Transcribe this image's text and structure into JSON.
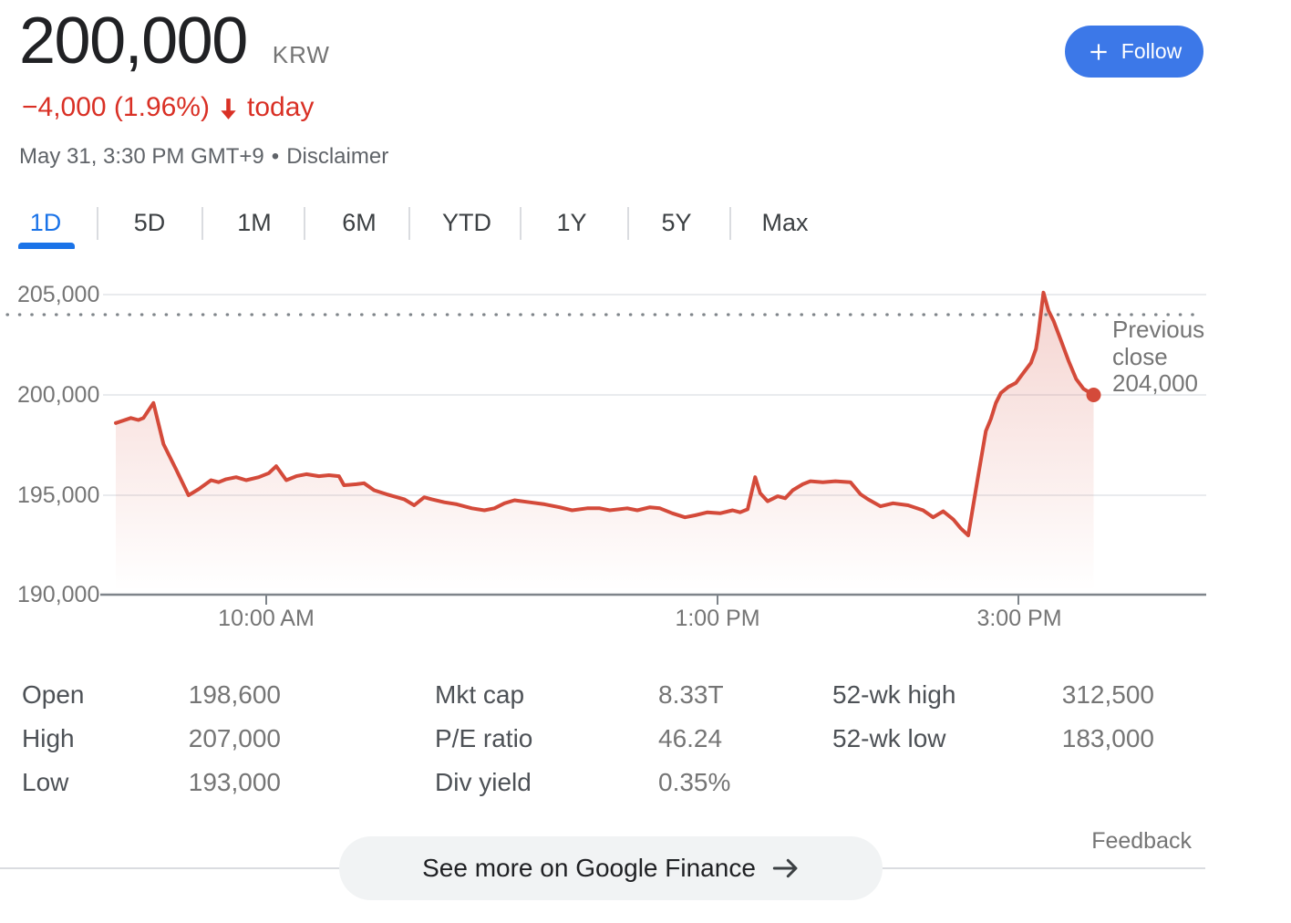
{
  "header": {
    "price": "200,000",
    "currency": "KRW",
    "change_text": "−4,000 (1.96%)",
    "change_suffix": "today",
    "trend": "down",
    "timestamp": "May 31, 3:30 PM GMT+9",
    "bullet": "•",
    "disclaimer": "Disclaimer",
    "follow_label": "Follow",
    "colors": {
      "change_red": "#d93025",
      "follow_blue": "#3c78e8",
      "active_tab_blue": "#1a73e8"
    }
  },
  "tabs": [
    {
      "label": "1D",
      "active": true
    },
    {
      "label": "5D",
      "active": false
    },
    {
      "label": "1M",
      "active": false
    },
    {
      "label": "6M",
      "active": false
    },
    {
      "label": "YTD",
      "active": false
    },
    {
      "label": "1Y",
      "active": false
    },
    {
      "label": "5Y",
      "active": false
    },
    {
      "label": "Max",
      "active": false
    }
  ],
  "chart_data": {
    "type": "line",
    "title": "Intraday stock price (1D)",
    "line_color": "#d44a3a",
    "grid": true,
    "ylim": [
      190000,
      205500
    ],
    "y_axis": {
      "ticks": [
        {
          "label": "205,000",
          "value": 205000
        },
        {
          "label": "200,000",
          "value": 200000
        },
        {
          "label": "195,000",
          "value": 195000
        },
        {
          "label": "190,000",
          "value": 190000
        }
      ]
    },
    "x_axis": {
      "start_time": "9:00 AM",
      "ticks": [
        {
          "label": "10:00 AM",
          "minutes": 60
        },
        {
          "label": "1:00 PM",
          "minutes": 240
        },
        {
          "label": "3:00 PM",
          "minutes": 360
        }
      ]
    },
    "previous_close": {
      "label": "Previous close",
      "value_label": "204,000",
      "value": 204000
    },
    "series": [
      {
        "name": "price",
        "points_format": "[minutes since 9:00 AM, price KRW]",
        "points": [
          [
            0,
            198600
          ],
          [
            6,
            198850
          ],
          [
            9,
            198750
          ],
          [
            11,
            198850
          ],
          [
            15,
            199600
          ],
          [
            19,
            197550
          ],
          [
            24,
            196300
          ],
          [
            29,
            195000
          ],
          [
            33,
            195300
          ],
          [
            38,
            195750
          ],
          [
            41,
            195650
          ],
          [
            44,
            195800
          ],
          [
            48,
            195900
          ],
          [
            52,
            195750
          ],
          [
            57,
            195900
          ],
          [
            61,
            196100
          ],
          [
            64,
            196450
          ],
          [
            68,
            195750
          ],
          [
            72,
            195950
          ],
          [
            76,
            196050
          ],
          [
            81,
            195950
          ],
          [
            85,
            196000
          ],
          [
            89,
            195950
          ],
          [
            91,
            195500
          ],
          [
            96,
            195550
          ],
          [
            99,
            195600
          ],
          [
            103,
            195250
          ],
          [
            108,
            195050
          ],
          [
            115,
            194800
          ],
          [
            119,
            194500
          ],
          [
            123,
            194900
          ],
          [
            126,
            194800
          ],
          [
            131,
            194650
          ],
          [
            136,
            194550
          ],
          [
            142,
            194350
          ],
          [
            147,
            194250
          ],
          [
            151,
            194350
          ],
          [
            155,
            194600
          ],
          [
            159,
            194750
          ],
          [
            165,
            194650
          ],
          [
            171,
            194550
          ],
          [
            177,
            194400
          ],
          [
            182,
            194250
          ],
          [
            188,
            194350
          ],
          [
            193,
            194350
          ],
          [
            197,
            194250
          ],
          [
            204,
            194350
          ],
          [
            208,
            194250
          ],
          [
            213,
            194400
          ],
          [
            217,
            194350
          ],
          [
            222,
            194100
          ],
          [
            227,
            193900
          ],
          [
            231,
            194000
          ],
          [
            236,
            194150
          ],
          [
            241,
            194100
          ],
          [
            246,
            194250
          ],
          [
            249,
            194150
          ],
          [
            252,
            194300
          ],
          [
            255,
            195900
          ],
          [
            257,
            195100
          ],
          [
            260,
            194700
          ],
          [
            264,
            194950
          ],
          [
            267,
            194850
          ],
          [
            270,
            195250
          ],
          [
            274,
            195550
          ],
          [
            277,
            195700
          ],
          [
            282,
            195650
          ],
          [
            287,
            195700
          ],
          [
            293,
            195650
          ],
          [
            297,
            195050
          ],
          [
            300,
            194800
          ],
          [
            305,
            194450
          ],
          [
            310,
            194600
          ],
          [
            316,
            194500
          ],
          [
            322,
            194250
          ],
          [
            326,
            193900
          ],
          [
            330,
            194200
          ],
          [
            334,
            193800
          ],
          [
            337,
            193350
          ],
          [
            340,
            193000
          ],
          [
            344,
            196000
          ],
          [
            347,
            198200
          ],
          [
            349,
            198800
          ],
          [
            351,
            199600
          ],
          [
            353,
            200100
          ],
          [
            356,
            200400
          ],
          [
            359,
            200600
          ],
          [
            362,
            201100
          ],
          [
            365,
            201600
          ],
          [
            367,
            202300
          ],
          [
            368,
            203100
          ],
          [
            370,
            205100
          ],
          [
            372,
            204200
          ],
          [
            374,
            203700
          ],
          [
            377,
            202700
          ],
          [
            380,
            201700
          ],
          [
            383,
            200800
          ],
          [
            386,
            200300
          ],
          [
            390,
            200000
          ]
        ]
      }
    ]
  },
  "stats": {
    "columns": [
      {
        "rows": [
          {
            "label": "Open",
            "value": "198,600"
          },
          {
            "label": "High",
            "value": "207,000"
          },
          {
            "label": "Low",
            "value": "193,000"
          }
        ]
      },
      {
        "rows": [
          {
            "label": "Mkt cap",
            "value": "8.33T"
          },
          {
            "label": "P/E ratio",
            "value": "46.24"
          },
          {
            "label": "Div yield",
            "value": "0.35%"
          }
        ]
      },
      {
        "rows": [
          {
            "label": "52-wk high",
            "value": "312,500"
          },
          {
            "label": "52-wk low",
            "value": "183,000"
          }
        ]
      }
    ]
  },
  "footer": {
    "see_more": "See more on Google Finance",
    "feedback": "Feedback"
  }
}
